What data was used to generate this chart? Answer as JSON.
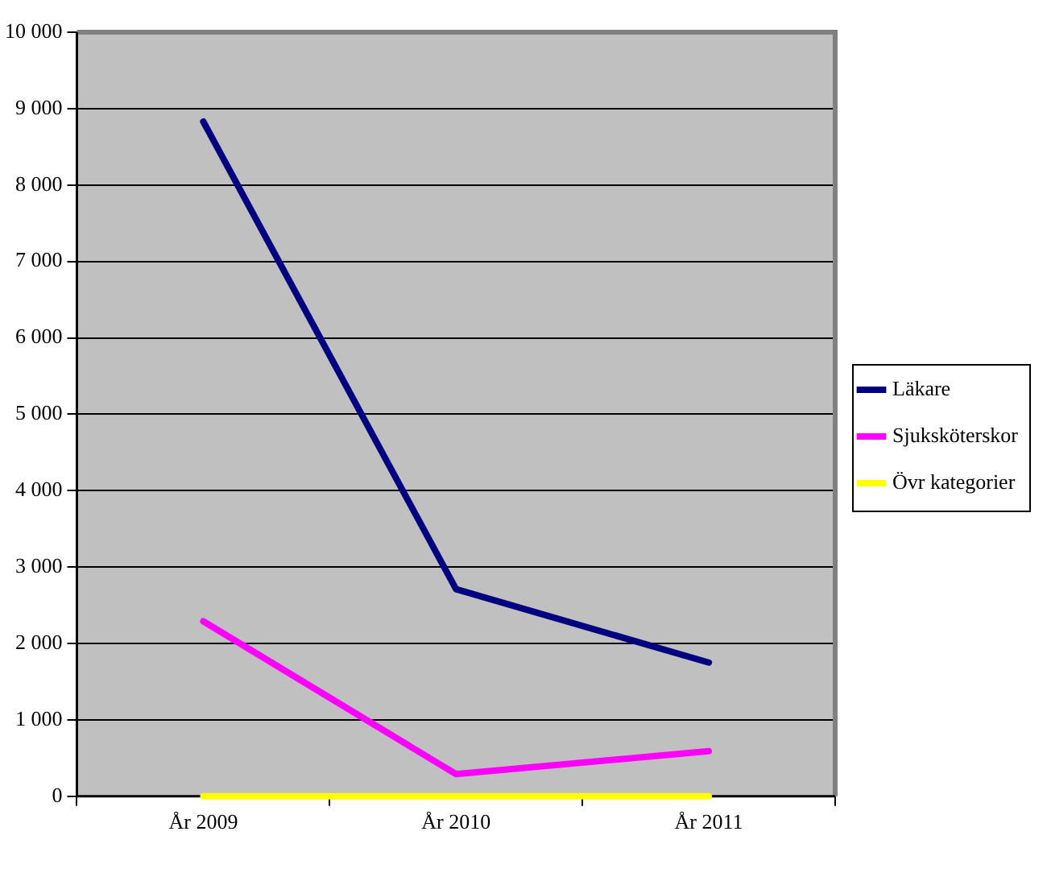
{
  "chart_data": {
    "type": "line",
    "categories": [
      "År 2009",
      "År 2010",
      "År 2011"
    ],
    "series": [
      {
        "name": "Läkare",
        "color": "#000080",
        "values": [
          8830,
          2710,
          1750
        ]
      },
      {
        "name": "Sjuksköterskor",
        "color": "#ff00ff",
        "values": [
          2290,
          290,
          590
        ]
      },
      {
        "name": "Övr kategorier",
        "color": "#ffff00",
        "values": [
          0,
          0,
          0
        ]
      }
    ],
    "ylim": [
      0,
      10000
    ],
    "yticks": [
      0,
      {
        "value": 1000,
        "label": "1 000"
      },
      {
        "value": 2000,
        "label": "2 000"
      },
      {
        "value": 3000,
        "label": "3 000"
      },
      {
        "value": 4000,
        "label": "4 000"
      },
      {
        "value": 5000,
        "label": "5 000"
      },
      {
        "value": 6000,
        "label": "6 000"
      },
      {
        "value": 7000,
        "label": "7 000"
      },
      {
        "value": 8000,
        "label": "8 000"
      },
      {
        "value": 9000,
        "label": "9 000"
      },
      {
        "value": 10000,
        "label": "10 000"
      }
    ],
    "grid": "y",
    "legend": "right",
    "marker": "none",
    "line_style": "solid"
  }
}
